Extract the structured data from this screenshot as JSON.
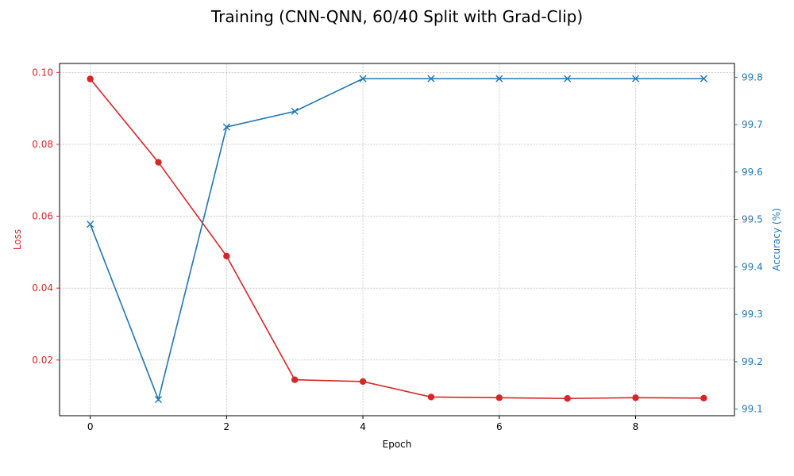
{
  "chart_data": {
    "type": "line",
    "title": "Training (CNN-QNN, 60/40 Split with Grad-Clip)",
    "xlabel": "Epoch",
    "ylabel_left": "Loss",
    "ylabel_right": "Accuracy (%)",
    "x": [
      0,
      1,
      2,
      3,
      4,
      5,
      6,
      7,
      8,
      9
    ],
    "xlim": [
      -0.45,
      9.45
    ],
    "xticks": [
      0,
      2,
      4,
      6,
      8
    ],
    "ylim_left": [
      0.0045,
      0.1025
    ],
    "yticks_left": [
      0.02,
      0.04,
      0.06,
      0.08,
      0.1
    ],
    "ylim_right": [
      99.086,
      99.829
    ],
    "yticks_right": [
      99.1,
      99.2,
      99.3,
      99.4,
      99.5,
      99.6,
      99.7,
      99.8
    ],
    "grid": true,
    "series": [
      {
        "axis": "left",
        "color": "#d62728",
        "marker": "circle",
        "values": [
          0.0982,
          0.075,
          0.0489,
          0.0145,
          0.014,
          0.0097,
          0.0095,
          0.0093,
          0.0095,
          0.0094
        ]
      },
      {
        "axis": "right",
        "color": "#1f77b4",
        "marker": "x",
        "values": [
          99.49,
          99.12,
          99.695,
          99.728,
          99.797,
          99.797,
          99.797,
          99.797,
          99.797,
          99.797
        ]
      }
    ]
  }
}
